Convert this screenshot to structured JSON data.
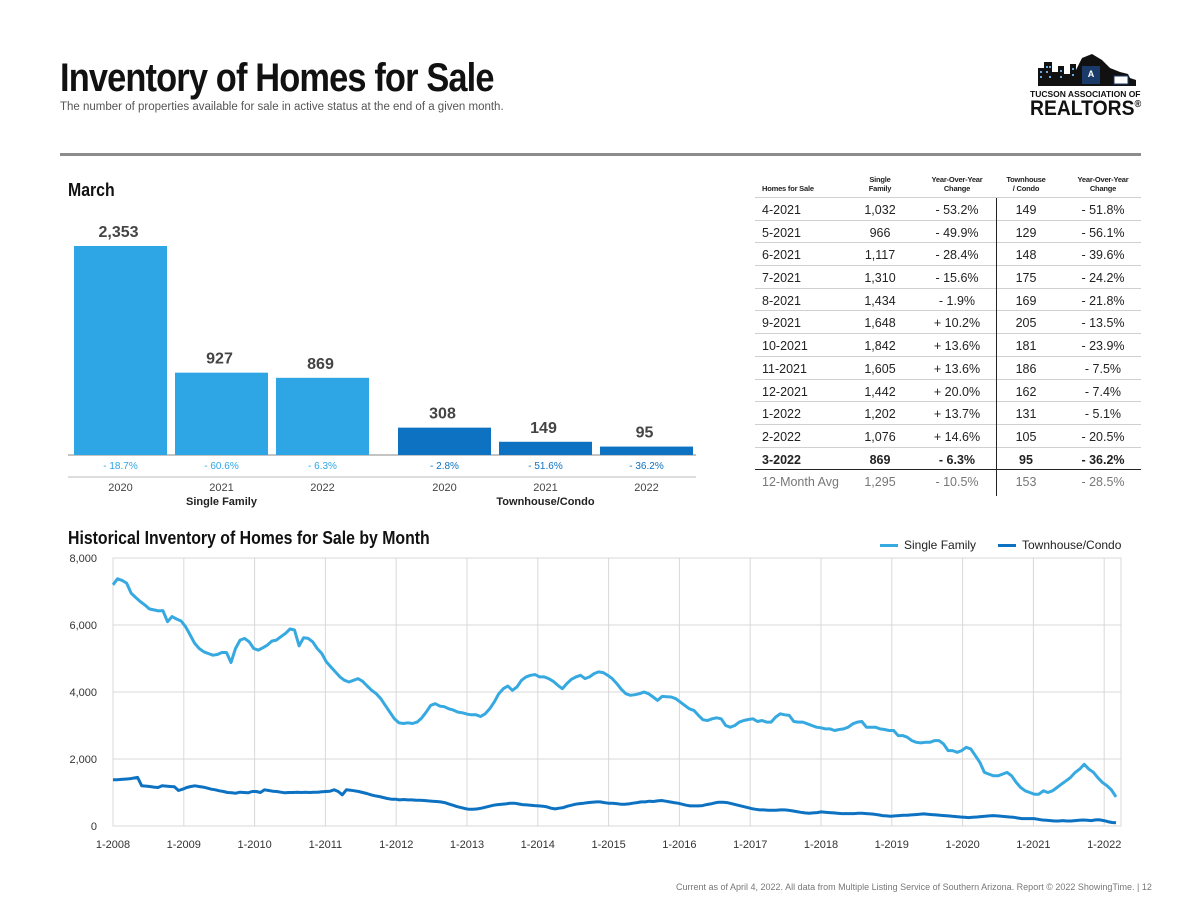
{
  "header": {
    "title": "Inventory of Homes for Sale",
    "subtitle": "The number of properties available for sale in active status at the end of a given month.",
    "logo_line1": "TUCSON ASSOCIATION OF",
    "logo_line2": "REALTORS",
    "logo_mark": "®",
    "logo_icon": "city-skyline-icon"
  },
  "chart_data": [
    {
      "type": "bar",
      "title": "March",
      "groups": [
        "Single Family",
        "Townhouse/Condo"
      ],
      "categories": [
        "2020",
        "2021",
        "2022",
        "2020",
        "2021",
        "2022"
      ],
      "values": [
        2353,
        927,
        869,
        308,
        149,
        95
      ],
      "value_labels": [
        "2,353",
        "927",
        "869",
        "308",
        "149",
        "95"
      ],
      "changes": [
        "- 18.7%",
        "- 60.6%",
        "- 6.3%",
        "- 2.8%",
        "- 51.6%",
        "- 36.2%"
      ],
      "colors": [
        "#2ea6e6",
        "#2ea6e6",
        "#2ea6e6",
        "#0d72c1",
        "#0d72c1",
        "#0d72c1"
      ],
      "ylim": [
        0,
        2353
      ]
    },
    {
      "type": "table",
      "headers": [
        [
          "Homes for Sale"
        ],
        [
          "Single",
          "Family"
        ],
        [
          "Year-Over-Year",
          "Change"
        ],
        [
          "Townhouse",
          "/ Condo"
        ],
        [
          "Year-Over-Year",
          "Change"
        ]
      ],
      "rows": [
        [
          "4-2021",
          "1,032",
          "- 53.2%",
          "149",
          "- 51.8%"
        ],
        [
          "5-2021",
          "966",
          "- 49.9%",
          "129",
          "- 56.1%"
        ],
        [
          "6-2021",
          "1,117",
          "- 28.4%",
          "148",
          "- 39.6%"
        ],
        [
          "7-2021",
          "1,310",
          "- 15.6%",
          "175",
          "- 24.2%"
        ],
        [
          "8-2021",
          "1,434",
          "- 1.9%",
          "169",
          "- 21.8%"
        ],
        [
          "9-2021",
          "1,648",
          "+ 10.2%",
          "205",
          "- 13.5%"
        ],
        [
          "10-2021",
          "1,842",
          "+ 13.6%",
          "181",
          "- 23.9%"
        ],
        [
          "11-2021",
          "1,605",
          "+ 13.6%",
          "186",
          "- 7.5%"
        ],
        [
          "12-2021",
          "1,442",
          "+ 20.0%",
          "162",
          "- 7.4%"
        ],
        [
          "1-2022",
          "1,202",
          "+ 13.7%",
          "131",
          "- 5.1%"
        ],
        [
          "2-2022",
          "1,076",
          "+ 14.6%",
          "105",
          "- 20.5%"
        ],
        [
          "3-2022",
          "869",
          "- 6.3%",
          "95",
          "- 36.2%"
        ]
      ],
      "average": [
        "12-Month Avg",
        "1,295",
        "- 10.5%",
        "153",
        "- 28.5%"
      ]
    },
    {
      "type": "line",
      "title": "Historical Inventory of Homes for Sale by Month",
      "x_ticks": [
        "1-2008",
        "1-2009",
        "1-2010",
        "1-2011",
        "1-2012",
        "1-2013",
        "1-2014",
        "1-2015",
        "1-2016",
        "1-2017",
        "1-2018",
        "1-2019",
        "1-2020",
        "1-2021",
        "1-2022"
      ],
      "y_ticks": [
        "0",
        "2,000",
        "4,000",
        "6,000",
        "8,000"
      ],
      "ylim": [
        0,
        8000
      ],
      "grid": true,
      "legend": "top-right",
      "x_start": "1-2008",
      "x_end": "3-2022",
      "series": [
        {
          "name": "Single Family",
          "color": "#36a9e1",
          "values": [
            7200,
            7380,
            7330,
            7250,
            6950,
            6820,
            6700,
            6600,
            6480,
            6450,
            6420,
            6430,
            6100,
            6250,
            6180,
            6120,
            5950,
            5700,
            5450,
            5300,
            5200,
            5150,
            5100,
            5120,
            5180,
            5180,
            4880,
            5300,
            5550,
            5600,
            5500,
            5300,
            5250,
            5320,
            5400,
            5520,
            5550,
            5650,
            5750,
            5880,
            5850,
            5380,
            5620,
            5600,
            5500,
            5300,
            5150,
            4900,
            4750,
            4600,
            4450,
            4350,
            4300,
            4350,
            4400,
            4320,
            4180,
            4050,
            3950,
            3800,
            3600,
            3400,
            3200,
            3080,
            3060,
            3080,
            3060,
            3100,
            3220,
            3400,
            3600,
            3650,
            3580,
            3560,
            3500,
            3460,
            3400,
            3380,
            3340,
            3320,
            3320,
            3270,
            3350,
            3500,
            3700,
            3950,
            4100,
            4180,
            4050,
            4150,
            4350,
            4450,
            4500,
            4520,
            4450,
            4450,
            4400,
            4320,
            4200,
            4100,
            4250,
            4380,
            4450,
            4500,
            4400,
            4450,
            4550,
            4600,
            4580,
            4500,
            4400,
            4250,
            4080,
            3950,
            3900,
            3920,
            3950,
            4000,
            3950,
            3850,
            3750,
            3870,
            3860,
            3850,
            3800,
            3700,
            3600,
            3500,
            3450,
            3300,
            3170,
            3150,
            3200,
            3230,
            3200,
            3000,
            2950,
            3000,
            3100,
            3150,
            3180,
            3200,
            3120,
            3150,
            3100,
            3100,
            3250,
            3350,
            3320,
            3300,
            3120,
            3100,
            3100,
            3050,
            3000,
            2950,
            2930,
            2900,
            2900,
            2850,
            2880,
            2900,
            2950,
            3050,
            3100,
            3120,
            2950,
            2950,
            2950,
            2900,
            2880,
            2850,
            2850,
            2700,
            2700,
            2650,
            2550,
            2500,
            2480,
            2500,
            2500,
            2550,
            2550,
            2450,
            2250,
            2250,
            2200,
            2250,
            2350,
            2300,
            2100,
            1900,
            1600,
            1550,
            1500,
            1500,
            1550,
            1600,
            1500,
            1300,
            1150,
            1050,
            1000,
            950,
            950,
            1050,
            1000,
            1050,
            1150,
            1250,
            1350,
            1450,
            1600,
            1700,
            1842,
            1700,
            1605,
            1442,
            1300,
            1202,
            1076,
            869
          ]
        },
        {
          "name": "Townhouse/Condo",
          "color": "#0d72c1",
          "values": [
            1380,
            1380,
            1390,
            1400,
            1410,
            1430,
            1450,
            1200,
            1190,
            1180,
            1160,
            1150,
            1200,
            1190,
            1180,
            1170,
            1060,
            1100,
            1150,
            1180,
            1200,
            1180,
            1160,
            1130,
            1100,
            1080,
            1050,
            1030,
            1000,
            990,
            980,
            1010,
            1000,
            990,
            1030,
            1030,
            1000,
            1080,
            1060,
            1040,
            1030,
            1010,
            990,
            1000,
            1000,
            1010,
            1000,
            1010,
            1000,
            1010,
            1010,
            1020,
            1030,
            1040,
            1080,
            1030,
            930,
            1080,
            1070,
            1050,
            1030,
            1000,
            970,
            930,
            900,
            880,
            850,
            820,
            800,
            800,
            780,
            790,
            780,
            780,
            770,
            770,
            760,
            750,
            740,
            730,
            720,
            700,
            660,
            620,
            580,
            550,
            520,
            500,
            500,
            510,
            530,
            560,
            590,
            620,
            640,
            650,
            660,
            680,
            680,
            660,
            640,
            630,
            620,
            610,
            600,
            590,
            570,
            530,
            510,
            530,
            550,
            590,
            620,
            650,
            670,
            680,
            700,
            710,
            720,
            720,
            700,
            680,
            680,
            670,
            650,
            650,
            660,
            680,
            700,
            720,
            720,
            740,
            730,
            750,
            760,
            740,
            720,
            700,
            680,
            650,
            620,
            600,
            600,
            600,
            610,
            640,
            660,
            690,
            710,
            710,
            700,
            670,
            640,
            610,
            580,
            550,
            520,
            500,
            480,
            480,
            470,
            470,
            470,
            480,
            480,
            470,
            450,
            430,
            410,
            390,
            380,
            390,
            400,
            420,
            410,
            400,
            390,
            380,
            370,
            370,
            370,
            370,
            380,
            380,
            370,
            360,
            350,
            330,
            310,
            300,
            290,
            300,
            310,
            320,
            320,
            330,
            340,
            350,
            360,
            350,
            340,
            330,
            320,
            310,
            300,
            290,
            280,
            270,
            260,
            250,
            260,
            270,
            280,
            290,
            300,
            310,
            300,
            290,
            280,
            270,
            260,
            240,
            220,
            220,
            220,
            220,
            200,
            180,
            170,
            160,
            150,
            150,
            160,
            150,
            150,
            160,
            170,
            180,
            170,
            160,
            181,
            186,
            162,
            131,
            105,
            95
          ]
        }
      ]
    }
  ],
  "footer": "Current as of April 4, 2022. All data from Multiple Listing Service of Southern Arizona. Report © 2022 ShowingTime.  |  12"
}
